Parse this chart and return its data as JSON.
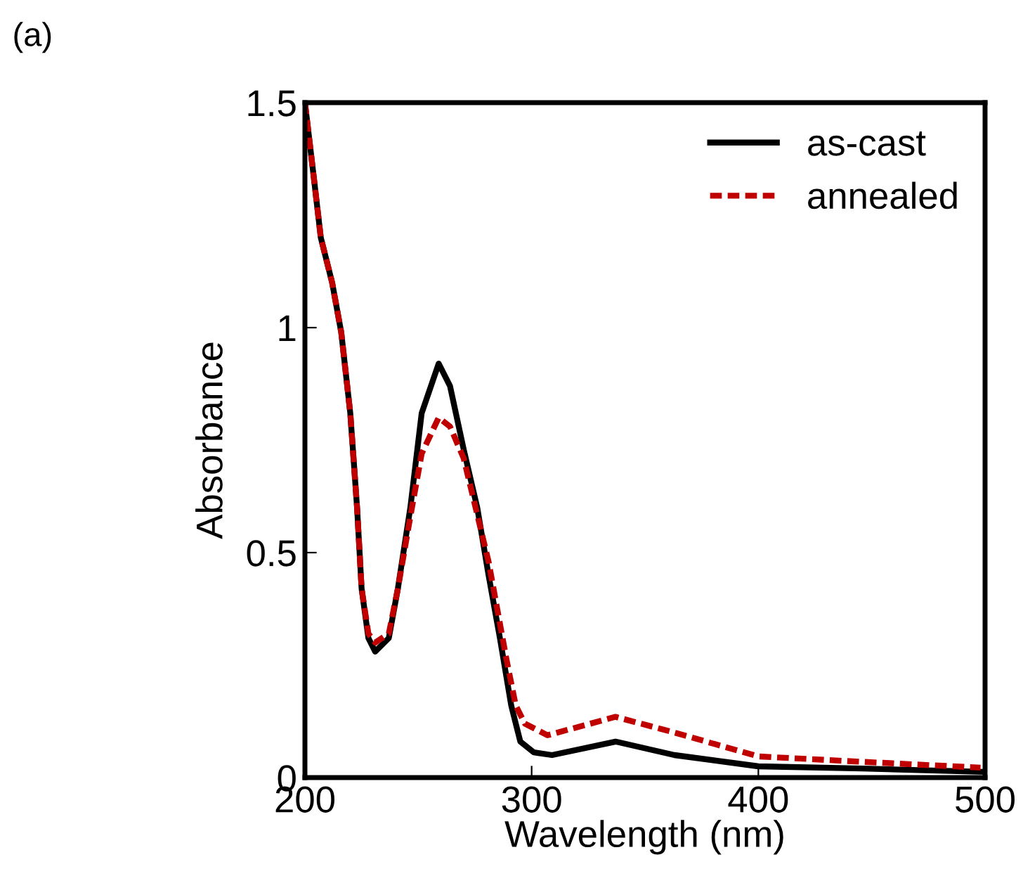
{
  "chart_data": {
    "type": "line",
    "xlabel": "Wavelength (nm)",
    "ylabel": "Absorbance",
    "annotations": [
      "(a)"
    ],
    "xlim": [
      200,
      500
    ],
    "ylim": [
      0,
      1.5
    ],
    "xticks": [
      200,
      300,
      400,
      500
    ],
    "yticks": [
      0,
      0.5,
      1,
      1.5
    ],
    "legend": "top right",
    "grid": false,
    "series": [
      {
        "name": "as-cast",
        "color": "#000000",
        "line_style": "solid",
        "x": [
          200,
          204,
          207,
          212,
          216,
          220,
          223,
          225,
          228,
          231,
          237,
          241,
          246.5,
          251.5,
          259,
          264,
          270,
          276,
          281,
          286,
          291,
          295,
          301,
          309,
          337,
          363,
          400,
          446,
          498
        ],
        "values": [
          1.5,
          1.33,
          1.2,
          1.1,
          0.99,
          0.81,
          0.6,
          0.42,
          0.31,
          0.28,
          0.31,
          0.42,
          0.6,
          0.81,
          0.92,
          0.87,
          0.73,
          0.6,
          0.45,
          0.31,
          0.16,
          0.08,
          0.056,
          0.05,
          0.08,
          0.05,
          0.025,
          0.02,
          0.013
        ]
      },
      {
        "name": "annealed",
        "color": "#c00000",
        "line_style": "dashed",
        "x": [
          200,
          204,
          207,
          212,
          216,
          220,
          223,
          225,
          228,
          231,
          237,
          241,
          246.5,
          251.5,
          259,
          264,
          270,
          281,
          289,
          293,
          297,
          307,
          337,
          363,
          400,
          446,
          498
        ],
        "values": [
          1.5,
          1.33,
          1.2,
          1.1,
          0.99,
          0.81,
          0.6,
          0.42,
          0.32,
          0.3,
          0.32,
          0.42,
          0.58,
          0.72,
          0.8,
          0.78,
          0.71,
          0.48,
          0.26,
          0.16,
          0.12,
          0.094,
          0.135,
          0.1,
          0.047,
          0.035,
          0.022
        ]
      }
    ]
  }
}
